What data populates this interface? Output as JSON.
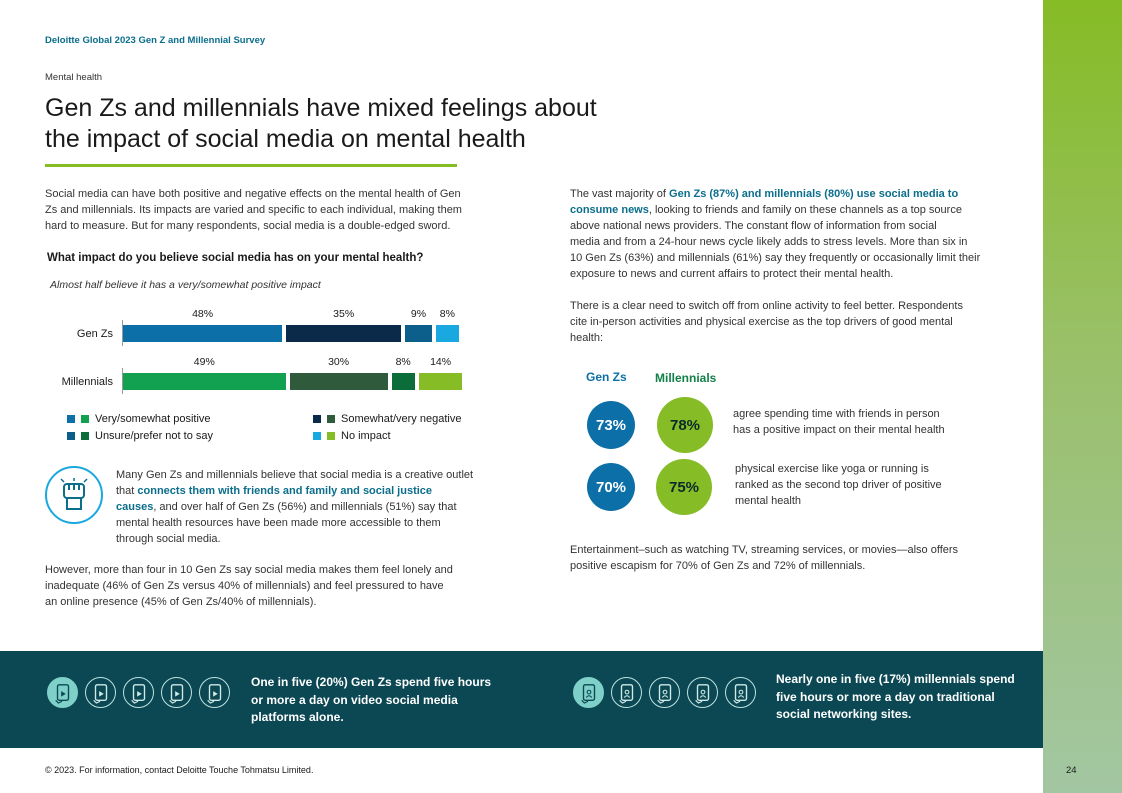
{
  "header": {
    "survey_title": "Deloitte Global 2023 Gen Z and Millennial Survey",
    "section": "Mental health"
  },
  "title": {
    "line1": "Gen Zs and millennials have mixed feelings about",
    "line2": "the impact of social media on mental health"
  },
  "intro": {
    "l1": "Social media can have both positive and negative effects on the mental health of Gen",
    "l2": "Zs and millennials. Its impacts are varied and specific to each individual, making them",
    "l3": "hard to measure. But for many respondents, social media is a double-edged sword."
  },
  "chart_data": {
    "type": "bar",
    "stacked": true,
    "orientation": "horizontal",
    "title": "What impact do you believe social media has on your mental health?",
    "subtitle": "Almost half believe it has a very/somewhat positive impact",
    "categories": [
      "Gen Zs",
      "Millennials"
    ],
    "series": [
      {
        "name": "Very/somewhat positive",
        "values": [
          48,
          49
        ],
        "labels": [
          "48%",
          "49%"
        ],
        "colors": [
          "#0c6fa8",
          "#12a150"
        ]
      },
      {
        "name": "Somewhat/very negative",
        "values": [
          35,
          30
        ],
        "labels": [
          "35%",
          "30%"
        ],
        "colors": [
          "#0b2a4a",
          "#2f5a3b"
        ]
      },
      {
        "name": "Unsure/prefer not to say",
        "values": [
          9,
          8
        ],
        "labels": [
          "9%",
          "8%"
        ],
        "colors": [
          "#0c5f8a",
          "#0b6e3a"
        ]
      },
      {
        "name": "No impact",
        "values": [
          8,
          14
        ],
        "labels": [
          "8%",
          "14%"
        ],
        "colors": [
          "#1aa8e0",
          "#86bc25"
        ]
      }
    ]
  },
  "callout": {
    "l1": "Many Gen Zs and millennials believe that social media is a creative outlet",
    "l2_pre": "that ",
    "l2_bold": "connects them with friends and family and social justice",
    "l3_bold": "causes",
    "l3_post": ", and over half of Gen Zs (56%) and millennials (51%) say that",
    "l4": "mental health resources have been made more accessible to them",
    "l5": "through social media."
  },
  "however": {
    "l1": "However, more than four in 10 Gen Zs say social media makes them feel lonely and",
    "l2": "inadequate (46% of Gen Zs versus 40% of millennials) and feel pressured to have",
    "l3": "an online presence (45% of Gen Zs/40% of millennials)."
  },
  "right_para1": {
    "l1_pre": "The vast majority of ",
    "l1_bold": "Gen Zs (87%) and millennials (80%) use social media to",
    "l2_bold": "consume news",
    "l2_post": ", looking to friends and family on these channels as a top source",
    "l3": "above national news providers. The constant flow of information from social",
    "l4": "media and from a 24-hour news cycle likely adds to stress levels. More than six in",
    "l5": "10 Gen Zs (63%) and millennials (61%) say they frequently or occasionally limit their",
    "l6": "exposure to news and current affairs to protect their mental health."
  },
  "right_para2": {
    "l1": "There is a clear need to switch off from online activity to feel better. Respondents",
    "l2": "cite in-person activities and physical exercise as the top drivers of good mental",
    "l3": "health:"
  },
  "stats": {
    "genz_label": "Gen Zs",
    "mill_label": "Millennials",
    "genz_color": "#0c6fa8",
    "mill_color": "#86bc25",
    "row1": {
      "genz": "73%",
      "mill": "78%",
      "l1": "agree spending time with friends in person",
      "l2": "has a positive impact on their mental health"
    },
    "row2": {
      "genz": "70%",
      "mill": "75%",
      "l1": "physical exercise like yoga or running is",
      "l2": "ranked as the second top driver of positive",
      "l3": "mental health"
    }
  },
  "entertainment": {
    "l1": "Entertainment–such as watching TV, streaming services, or movies—also offers",
    "l2": "positive escapism for 70% of Gen Zs and 72% of millennials."
  },
  "band": {
    "left": {
      "l1": "One in five (20%) Gen Zs spend five hours",
      "l2": "or more a day on video social media",
      "l3": "platforms alone.",
      "icon": "video-phone-icon",
      "fraction": 0.2
    },
    "right": {
      "l1": "Nearly one in five (17%) millennials spend",
      "l2": "five hours or more a day on traditional",
      "l3": "social networking sites.",
      "icon": "social-phone-icon",
      "fraction": 0.17
    }
  },
  "footer": {
    "copyright": "© 2023. For information, contact Deloitte Touche Tohmatsu Limited.",
    "page": "24"
  },
  "colors": {
    "accent_green": "#86bc25",
    "teal": "#0a6e8c",
    "band_bg": "#0b4853"
  }
}
